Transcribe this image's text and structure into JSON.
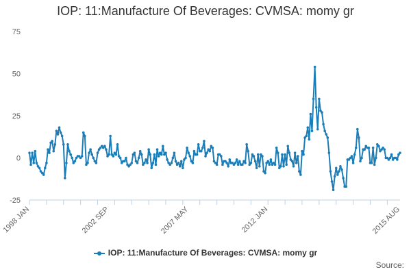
{
  "chart_data": {
    "type": "line",
    "title": "IOP: 11:Manufacture Of Beverages: CVMSA: momy gr",
    "xlabel": "",
    "ylabel": "",
    "ylim": [
      -25,
      75
    ],
    "yticks": [
      -25,
      0,
      25,
      50,
      75
    ],
    "xtick_labels": [
      "1998 JAN",
      "2002 SEP",
      "2007 MAY",
      "2012 JAN",
      "2015 AUG"
    ],
    "legend": "IOP: 11:Manufacture Of Beverages: CVMSA: momy gr",
    "grid": false,
    "series": [
      {
        "name": "IOP: 11:Manufacture Of Beverages: CVMSA: momy gr",
        "color": "#1a7db8",
        "x_start": "1998-01",
        "frequency": "monthly",
        "values": [
          3,
          -4,
          3,
          -3,
          4,
          -3,
          -5,
          -6,
          -8,
          -9,
          -10,
          -6,
          -3,
          5,
          3,
          9,
          10,
          4,
          8,
          16,
          14,
          18,
          15,
          13,
          8,
          -12,
          -3,
          8,
          4,
          2,
          0,
          -3,
          -2,
          0,
          1,
          1,
          0,
          1,
          15,
          13,
          -4,
          -3,
          3,
          5,
          2,
          0,
          -2,
          -3,
          3,
          5,
          6,
          7,
          6,
          7,
          5,
          1,
          2,
          13,
          2,
          1,
          3,
          2,
          8,
          1,
          0,
          -3,
          -2,
          -2,
          0,
          -4,
          -5,
          -4,
          -3,
          2,
          3,
          -2,
          -3,
          0,
          4,
          2,
          -4,
          -3,
          -1,
          -3,
          5,
          2,
          -6,
          -3,
          2,
          -4,
          5,
          1,
          3,
          2,
          7,
          2,
          3,
          -1,
          -3,
          -4,
          -3,
          0,
          3,
          -2,
          -4,
          -3,
          -5,
          -2,
          -6,
          -1,
          0,
          6,
          3,
          1,
          -2,
          -3,
          4,
          2,
          2,
          8,
          4,
          4,
          6,
          10,
          1,
          3,
          5,
          4,
          7,
          6,
          -2,
          -3,
          -4,
          2,
          2,
          1,
          -4,
          -2,
          -2,
          -3,
          -5,
          -1,
          -3,
          -3,
          -4,
          -3,
          -1,
          -4,
          -2,
          -4,
          -4,
          -2,
          -3,
          8,
          4,
          -4,
          -3,
          2,
          1,
          -2,
          -6,
          2,
          -5,
          2,
          1,
          -8,
          -9,
          -3,
          -2,
          -4,
          -1,
          -4,
          -3,
          -4,
          6,
          3,
          -6,
          -5,
          2,
          -5,
          2,
          -4,
          7,
          3,
          -1,
          -2,
          -5,
          3,
          -3,
          1,
          -8,
          -10,
          4,
          2,
          12,
          13,
          18,
          11,
          26,
          16,
          35,
          54,
          30,
          17,
          35,
          28,
          27,
          20,
          16,
          14,
          12,
          3,
          -8,
          -14,
          -19,
          -11,
          -6,
          -10,
          -8,
          -5,
          -7,
          -12,
          -17,
          -17,
          -1,
          -1,
          0,
          1,
          -3,
          2,
          6,
          17,
          12,
          -2,
          0,
          5,
          5,
          7,
          6,
          6,
          -3,
          -3,
          6,
          -4,
          0,
          8,
          7,
          4,
          5,
          6,
          5,
          0,
          0,
          -1,
          0,
          2,
          -1,
          0,
          0,
          -1,
          2,
          3
        ]
      }
    ]
  },
  "footer": {
    "credits": "Source:"
  }
}
